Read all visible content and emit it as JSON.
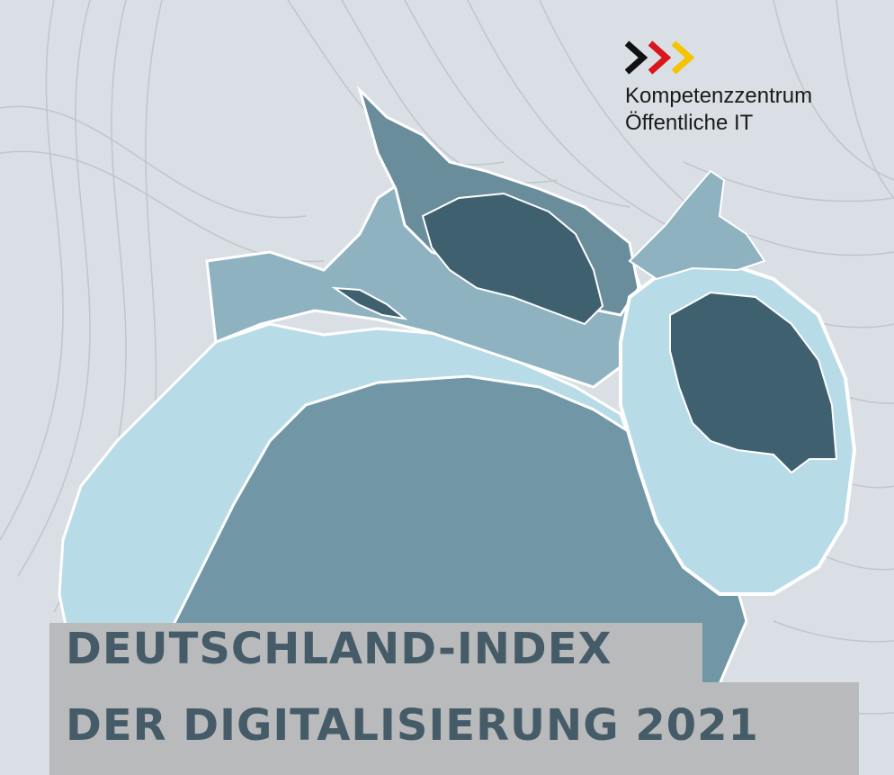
{
  "logo": {
    "line1": "Kompetenzzentrum",
    "line2": "Öffentliche IT",
    "arrow_colors": [
      "#111111",
      "#d8161b",
      "#f5c400"
    ]
  },
  "title": {
    "line1": "DEUTSCHLAND-INDEX",
    "line2": "DER DIGITALISIERUNG 2021"
  },
  "colors": {
    "background": "#d9dfe4",
    "region_dark": "#3f616f",
    "region_mid": "#7197a7",
    "region_light": "#b8dbe8",
    "title_band": "#b9babb",
    "title_text": "#455b67"
  }
}
